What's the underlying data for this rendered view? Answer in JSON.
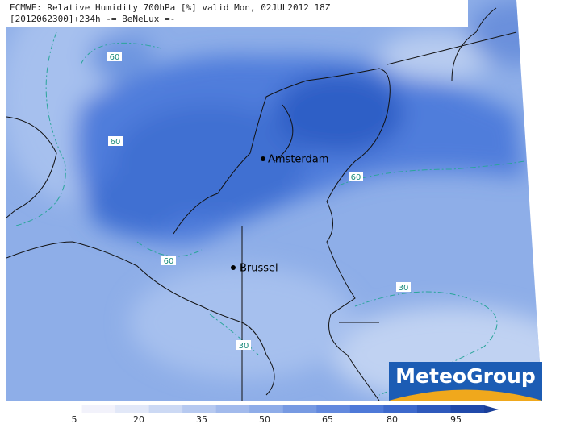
{
  "header": {
    "line1": "ECMWF: Relative Humidity 700hPa [%] valid Mon, 02JUL2012 18Z",
    "line2": "[2012062300]+234h -= BeNeLux =-"
  },
  "cities": [
    {
      "label": "Amsterdam"
    },
    {
      "label": "Brussel"
    }
  ],
  "contour_labels": [
    "60",
    "60",
    "60",
    "60",
    "30",
    "30"
  ],
  "colorbar": {
    "labels": [
      "5",
      "20",
      "35",
      "50",
      "65",
      "80",
      "95"
    ]
  },
  "logo": "MeteoGroup"
}
